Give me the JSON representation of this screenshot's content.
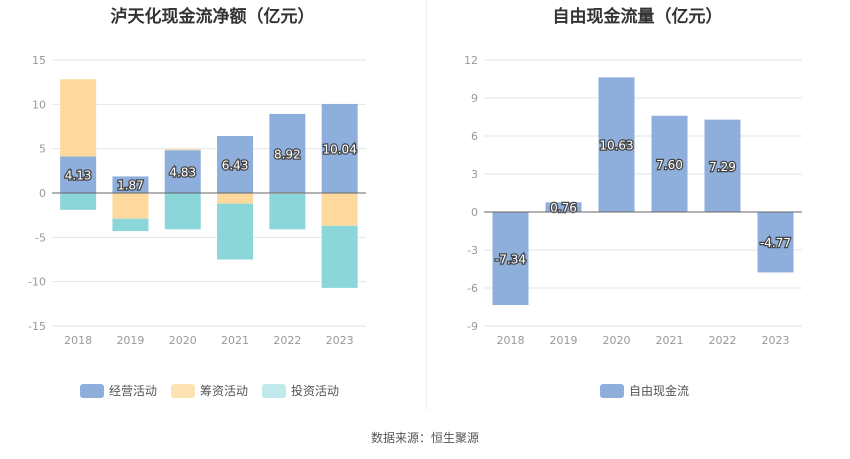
{
  "chart_data": [
    {
      "type": "bar",
      "stacked": true,
      "title": "泸天化现金流净额（亿元）",
      "categories": [
        "2018",
        "2019",
        "2020",
        "2021",
        "2022",
        "2023"
      ],
      "ylim": [
        -15,
        15
      ],
      "yticks": [
        15,
        10,
        5,
        0,
        -5,
        -10,
        -15
      ],
      "series": [
        {
          "name": "经营活动",
          "color": "#8eaedb",
          "values": [
            4.13,
            1.87,
            4.83,
            6.43,
            8.92,
            10.04
          ]
        },
        {
          "name": "筹资活动",
          "color": "#fdd99e",
          "values": [
            8.7,
            -2.9,
            0.1,
            -1.2,
            -0.1,
            -3.7
          ]
        },
        {
          "name": "投资活动",
          "color": "#8bd6d8",
          "values": [
            -1.9,
            -1.4,
            -4.1,
            -6.3,
            -4.0,
            -7.0
          ]
        }
      ],
      "data_labels": [
        "4.13",
        "1.87",
        "4.83",
        "6.43",
        "8.92",
        "10.04"
      ],
      "legend_position": "bottom",
      "grid": true
    },
    {
      "type": "bar",
      "title": "自由现金流量（亿元）",
      "categories": [
        "2018",
        "2019",
        "2020",
        "2021",
        "2022",
        "2023"
      ],
      "ylim": [
        -9,
        12
      ],
      "yticks": [
        12,
        9,
        6,
        3,
        0,
        -3,
        -6,
        -9
      ],
      "series": [
        {
          "name": "自由现金流",
          "color": "#8eaedb",
          "values": [
            -7.34,
            0.76,
            10.63,
            7.6,
            7.29,
            -4.77
          ]
        }
      ],
      "data_labels": [
        "-7.34",
        "0.76",
        "10.63",
        "7.60",
        "7.29",
        "-4.77"
      ],
      "legend_position": "bottom",
      "grid": true
    }
  ],
  "source_text": "数据来源：恒生聚源"
}
